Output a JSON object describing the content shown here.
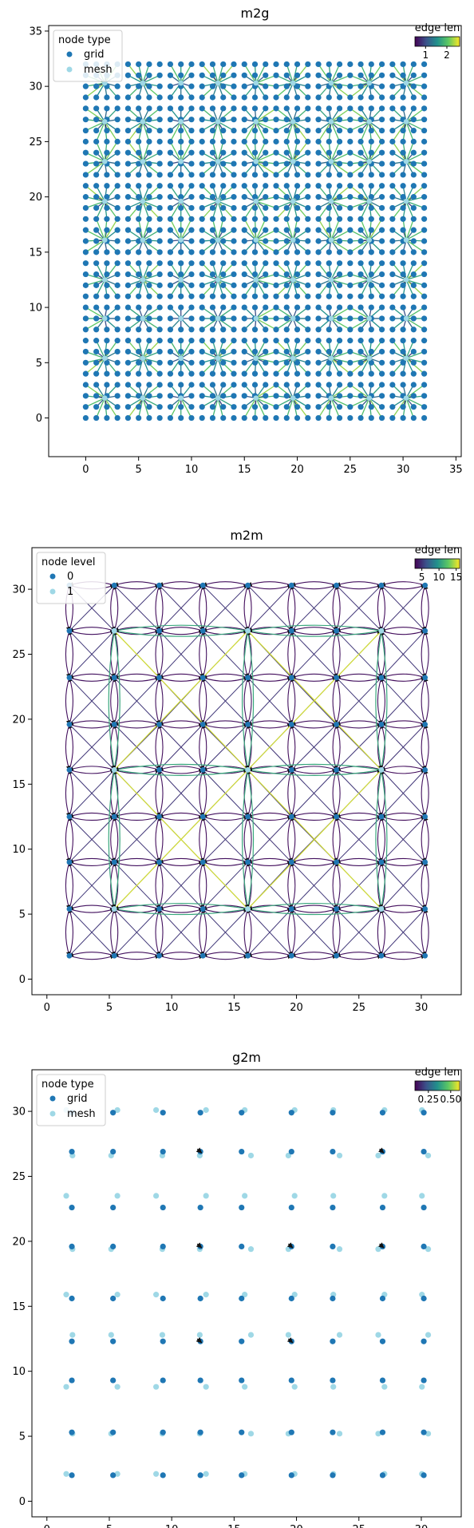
{
  "colors": {
    "grid_node": "#1f77b4",
    "mesh_node": "#9fd8e6",
    "arrow": "#111111",
    "viridis": [
      "#440154",
      "#3b528b",
      "#21918c",
      "#5ec962",
      "#fde725"
    ]
  },
  "chart_data": [
    {
      "type": "scatter",
      "title": "m2g",
      "xlim": [
        -3.5,
        35.5
      ],
      "ylim": [
        -3.5,
        35.5
      ],
      "xticks": [
        0,
        5,
        10,
        15,
        20,
        25,
        30,
        35
      ],
      "yticks": [
        0,
        5,
        10,
        15,
        20,
        25,
        30,
        35
      ],
      "legend": {
        "title": "node type",
        "placement": "top-left",
        "entries": [
          "grid",
          "mesh"
        ]
      },
      "colorbar": {
        "title": "edge len",
        "placement": "top-right",
        "range": [
          0.5,
          2.6
        ],
        "ticks": [
          1,
          2
        ]
      },
      "grid_nodes": {
        "start": 0,
        "stop": 32,
        "step": 1
      },
      "mesh_nodes": {
        "x": [
          1.8,
          5.4,
          9,
          12.5,
          16.1,
          19.6,
          23.2,
          26.8,
          30.3
        ],
        "y": [
          1.8,
          5.4,
          9,
          12.5,
          16.1,
          19.6,
          23.2,
          26.8,
          30.3
        ]
      }
    },
    {
      "type": "scatter",
      "title": "m2m",
      "xlim": [
        -1.2,
        33.2
      ],
      "ylim": [
        -1.2,
        33.2
      ],
      "xticks": [
        0,
        5,
        10,
        15,
        20,
        25,
        30
      ],
      "yticks": [
        0,
        5,
        10,
        15,
        20,
        25,
        30
      ],
      "legend": {
        "title": "node level",
        "placement": "top-left",
        "entries": [
          "0",
          "1"
        ]
      },
      "colorbar": {
        "title": "edge len",
        "placement": "top-right",
        "range": [
          3,
          16
        ],
        "ticks": [
          5,
          10,
          15
        ]
      },
      "level0_nodes": {
        "x": [
          1.8,
          5.4,
          9,
          12.5,
          16.1,
          19.6,
          23.2,
          26.8,
          30.3
        ],
        "y": [
          1.8,
          5.4,
          9,
          12.5,
          16.1,
          19.6,
          23.2,
          26.8,
          30.3
        ]
      },
      "level1_nodes": {
        "x": [
          5.4,
          16.1,
          26.8
        ],
        "y": [
          5.4,
          16.1,
          26.8
        ]
      }
    },
    {
      "type": "scatter",
      "title": "g2m",
      "xlim": [
        -1.2,
        33.2
      ],
      "ylim": [
        -1.2,
        33.2
      ],
      "xticks": [
        0,
        5,
        10,
        15,
        20,
        25,
        30
      ],
      "yticks": [
        0,
        5,
        10,
        15,
        20,
        25,
        30
      ],
      "legend": {
        "title": "node type",
        "placement": "top-left",
        "entries": [
          "grid",
          "mesh"
        ]
      },
      "colorbar": {
        "title": "edge len",
        "placement": "top-right",
        "range": [
          0.1,
          0.6
        ],
        "ticks": [
          0.25,
          0.5
        ],
        "tick_labels": [
          "0.25",
          "0.50"
        ]
      },
      "grid_nodes": {
        "x": [
          2,
          5.3,
          9.3,
          12.3,
          15.6,
          19.6,
          22.9,
          26.9,
          30.2
        ],
        "y": [
          2,
          5.3,
          9.3,
          12.3,
          15.6,
          19.6,
          22.6,
          26.9,
          29.9
        ]
      },
      "mesh_nodes": {
        "x": [
          1.8,
          5.4,
          9,
          12.5,
          16.1,
          19.6,
          23.2,
          26.8,
          30.3
        ],
        "y": [
          1.8,
          5.4,
          9,
          12.5,
          16.1,
          19.6,
          23.2,
          26.8,
          30.3
        ]
      }
    }
  ]
}
